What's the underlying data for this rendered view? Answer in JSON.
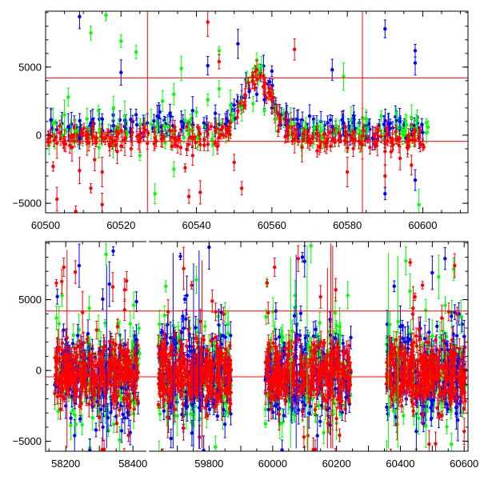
{
  "colors": {
    "blue": "#0000ff",
    "green": "#00ff00",
    "red": "#ff0000",
    "frame": "#000000"
  },
  "chart_data": [
    {
      "type": "scatter",
      "title": "",
      "xlabel": "",
      "ylabel": "",
      "xlim": [
        60500,
        60612
      ],
      "ylim": [
        -5700,
        9100
      ],
      "x_ticks": [
        60500,
        60520,
        60540,
        60560,
        60580,
        60600
      ],
      "x_tick_labels": [
        "60500",
        "60520",
        "60540",
        "60560",
        "60580",
        "60600"
      ],
      "y_ticks": [
        -5000,
        0,
        5000
      ],
      "y_tick_labels": [
        "−5000",
        "0",
        "5000"
      ],
      "hlines": [
        4200,
        -450
      ],
      "vlines": [
        60527,
        60584
      ],
      "series": [
        {
          "color": "blue",
          "points": [
            [
              60503,
              400
            ],
            [
              60506,
              600
            ],
            [
              60509,
              -200
            ],
            [
              60512,
              900
            ],
            [
              60515,
              1200
            ],
            [
              60518,
              700
            ],
            [
              60521,
              1100
            ],
            [
              60524,
              1500
            ],
            [
              60527,
              900
            ],
            [
              60530,
              1300
            ],
            [
              60533,
              1600
            ],
            [
              60536,
              1000
            ],
            [
              60539,
              1800
            ],
            [
              60542,
              900
            ],
            [
              60545,
              1600
            ],
            [
              60548,
              1200
            ],
            [
              60550,
              2200
            ],
            [
              60552,
              2800
            ],
            [
              60554,
              3200
            ],
            [
              60556,
              3000
            ],
            [
              60558,
              2600
            ],
            [
              60560,
              2000
            ],
            [
              60562,
              1500
            ],
            [
              60564,
              1100
            ],
            [
              60567,
              800
            ],
            [
              60570,
              1400
            ],
            [
              60573,
              1000
            ],
            [
              60576,
              600
            ],
            [
              60579,
              900
            ],
            [
              60582,
              500
            ],
            [
              60585,
              700
            ],
            [
              60588,
              -300
            ],
            [
              60591,
              800
            ],
            [
              60594,
              1000
            ],
            [
              60597,
              400
            ],
            [
              60600,
              200
            ],
            [
              60520,
              4600
            ],
            [
              60543,
              5100
            ],
            [
              60551,
              6700
            ],
            [
              60560,
              4700
            ],
            [
              60590,
              7800
            ],
            [
              60598,
              6200
            ],
            [
              60598,
              5300
            ],
            [
              60509,
              8700
            ],
            [
              60576,
              4800
            ],
            [
              60590,
              -4300
            ],
            [
              60598,
              -3300
            ]
          ]
        },
        {
          "color": "green",
          "points": [
            [
              60502,
              900
            ],
            [
              60505,
              1500
            ],
            [
              60508,
              300
            ],
            [
              60511,
              1200
            ],
            [
              60514,
              1800
            ],
            [
              60518,
              2000
            ],
            [
              60521,
              1400
            ],
            [
              60525,
              -1500
            ],
            [
              60528,
              800
            ],
            [
              60531,
              2500
            ],
            [
              60534,
              3000
            ],
            [
              60537,
              1100
            ],
            [
              60540,
              1700
            ],
            [
              60543,
              2600
            ],
            [
              60546,
              3400
            ],
            [
              60549,
              2200
            ],
            [
              60552,
              2000
            ],
            [
              60555,
              2300
            ],
            [
              60558,
              1800
            ],
            [
              60561,
              1200
            ],
            [
              60565,
              900
            ],
            [
              60569,
              600
            ],
            [
              60573,
              300
            ],
            [
              60577,
              700
            ],
            [
              60581,
              1100
            ],
            [
              60585,
              1200
            ],
            [
              60589,
              1400
            ],
            [
              60593,
              1600
            ],
            [
              60597,
              1300
            ],
            [
              60601,
              900
            ],
            [
              60512,
              7500
            ],
            [
              60516,
              8800
            ],
            [
              60524,
              6100
            ],
            [
              60520,
              6900
            ],
            [
              60536,
              4900
            ],
            [
              60546,
              6200
            ],
            [
              60556,
              5500
            ],
            [
              60579,
              4300
            ],
            [
              60529,
              -4300
            ],
            [
              60534,
              -2500
            ],
            [
              60506,
              2800
            ],
            [
              60599,
              -5100
            ]
          ]
        },
        {
          "color": "red",
          "points": [
            [
              60501,
              -200
            ],
            [
              60503,
              -600
            ],
            [
              60505,
              -400
            ],
            [
              60507,
              -900
            ],
            [
              60509,
              -2600
            ],
            [
              60511,
              -500
            ],
            [
              60513,
              -1800
            ],
            [
              60515,
              -2700
            ],
            [
              60517,
              -800
            ],
            [
              60519,
              -1200
            ],
            [
              60521,
              -400
            ],
            [
              60523,
              200
            ],
            [
              60525,
              -300
            ],
            [
              60527,
              -600
            ],
            [
              60529,
              -200
            ],
            [
              60531,
              -100
            ],
            [
              60533,
              300
            ],
            [
              60535,
              -800
            ],
            [
              60537,
              -2400
            ],
            [
              60539,
              -1500
            ],
            [
              60541,
              -700
            ],
            [
              60543,
              100
            ],
            [
              60545,
              300
            ],
            [
              60547,
              600
            ],
            [
              60549,
              900
            ],
            [
              60551,
              1800
            ],
            [
              60553,
              2900
            ],
            [
              60555,
              4300
            ],
            [
              60556,
              4800
            ],
            [
              60558,
              3600
            ],
            [
              60560,
              2600
            ],
            [
              60562,
              1400
            ],
            [
              60564,
              600
            ],
            [
              60566,
              -300
            ],
            [
              60568,
              -900
            ],
            [
              60570,
              -300
            ],
            [
              60572,
              100
            ],
            [
              60574,
              -600
            ],
            [
              60576,
              -400
            ],
            [
              60578,
              -200
            ],
            [
              60580,
              -500
            ],
            [
              60582,
              -300
            ],
            [
              60584,
              -700
            ],
            [
              60586,
              -900
            ],
            [
              60588,
              -400
            ],
            [
              60590,
              -1200
            ],
            [
              60592,
              -300
            ],
            [
              60594,
              -1700
            ],
            [
              60596,
              -800
            ],
            [
              60598,
              -400
            ],
            [
              60600,
              -700
            ],
            [
              60502,
              -2300
            ],
            [
              60503,
              -4700
            ],
            [
              60508,
              -5600
            ],
            [
              60512,
              -3900
            ],
            [
              60515,
              -5100
            ],
            [
              60538,
              -4500
            ],
            [
              60541,
              -4200
            ],
            [
              60550,
              -2000
            ],
            [
              60552,
              -3900
            ],
            [
              60546,
              5400
            ],
            [
              60543,
              8300
            ],
            [
              60566,
              6300
            ],
            [
              60580,
              -2700
            ],
            [
              60590,
              -3000
            ],
            [
              60597,
              -2200
            ]
          ]
        }
      ]
    },
    {
      "type": "scatter",
      "title": "",
      "xlabel": "",
      "ylabel": "",
      "segments": [
        {
          "xlim": [
            58140,
            58450
          ]
        },
        {
          "xlim": [
            59610,
            59900
          ]
        },
        {
          "xlim": [
            59900,
            60612
          ]
        }
      ],
      "ylim": [
        -5700,
        9100
      ],
      "x_ticks": [
        58200,
        58300,
        58400,
        59800,
        60000,
        60200,
        60400,
        60600
      ],
      "x_tick_labels": [
        "58200",
        "58400",
        "59800",
        "60000",
        "60200",
        "60400",
        "60600"
      ],
      "x_labeled_ticks": [
        58200,
        58400,
        59800,
        60000,
        60200,
        60400,
        60600
      ],
      "y_ticks": [
        -5000,
        0,
        5000
      ],
      "y_tick_labels": [
        "−5000",
        "0",
        "5000"
      ],
      "hlines": [
        4200,
        -450
      ],
      "observing_seasons": [
        [
          58165,
          58420
        ],
        [
          59640,
          59870
        ],
        [
          59975,
          60245
        ],
        [
          60355,
          60605
        ]
      ],
      "series": [
        {
          "color": "blue",
          "points": [
            [
              58200,
              -2500
            ],
            [
              58240,
              7400
            ],
            [
              58290,
              -4200
            ],
            [
              58330,
              6100
            ],
            [
              58370,
              -3100
            ],
            [
              58410,
              2200
            ],
            [
              59680,
              -4800
            ],
            [
              59730,
              5300
            ],
            [
              59780,
              -1800
            ],
            [
              59800,
              8700
            ],
            [
              59850,
              -3800
            ],
            [
              60010,
              4200
            ],
            [
              60060,
              -2800
            ],
            [
              60100,
              7700
            ],
            [
              60140,
              -4600
            ],
            [
              60180,
              3600
            ],
            [
              60230,
              -1900
            ],
            [
              60400,
              3100
            ],
            [
              60450,
              -4300
            ],
            [
              60500,
              6900
            ],
            [
              60540,
              7900
            ],
            [
              60580,
              -3500
            ],
            [
              60600,
              2400
            ]
          ]
        },
        {
          "color": "green",
          "points": [
            [
              58180,
              3300
            ],
            [
              58230,
              -3800
            ],
            [
              58270,
              4400
            ],
            [
              58320,
              8200
            ],
            [
              58360,
              -4900
            ],
            [
              58400,
              1800
            ],
            [
              59660,
              3900
            ],
            [
              59700,
              -3200
            ],
            [
              59760,
              6400
            ],
            [
              59820,
              -5400
            ],
            [
              59860,
              2600
            ],
            [
              60030,
              -3700
            ],
            [
              60070,
              5300
            ],
            [
              60120,
              8800
            ],
            [
              60160,
              -4400
            ],
            [
              60210,
              3100
            ],
            [
              60380,
              -2900
            ],
            [
              60430,
              5600
            ],
            [
              60480,
              -3900
            ],
            [
              60520,
              6600
            ],
            [
              60560,
              -5200
            ],
            [
              60590,
              3800
            ]
          ]
        },
        {
          "color": "red",
          "points": [
            [
              58190,
              -1400
            ],
            [
              58250,
              4100
            ],
            [
              58300,
              -3300
            ],
            [
              58340,
              5900
            ],
            [
              58390,
              -2400
            ],
            [
              59670,
              -3300
            ],
            [
              59720,
              7200
            ],
            [
              59770,
              -4700
            ],
            [
              59810,
              4900
            ],
            [
              59840,
              -2200
            ],
            [
              60020,
              -3100
            ],
            [
              60080,
              7900
            ],
            [
              60110,
              -4600
            ],
            [
              60150,
              5200
            ],
            [
              60200,
              -3400
            ],
            [
              60390,
              -3800
            ],
            [
              60440,
              4400
            ],
            [
              60490,
              -5200
            ],
            [
              60530,
              3700
            ],
            [
              60570,
              7400
            ],
            [
              60600,
              -4300
            ]
          ]
        }
      ]
    }
  ]
}
